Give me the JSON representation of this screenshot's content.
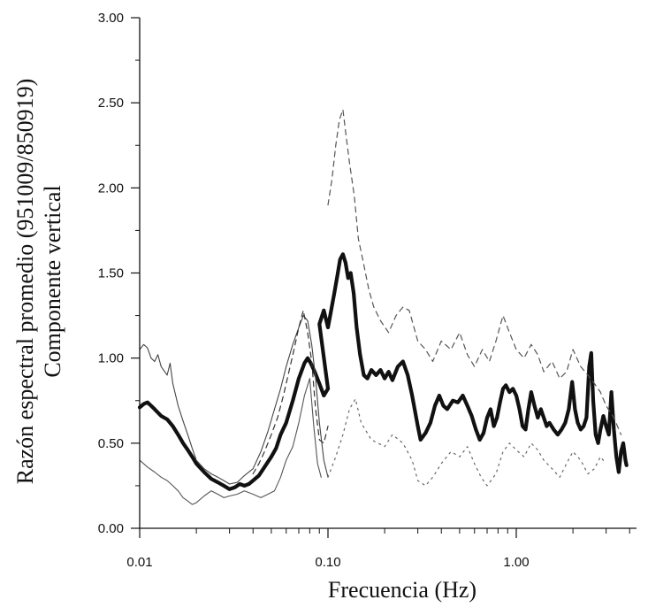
{
  "chart_data": {
    "type": "line",
    "title": "",
    "xlabel": "Frecuencia (Hz)",
    "ylabel_line1": "Razón espectral promedio (951009/850919)",
    "ylabel_line2": "Componente vertical",
    "xscale": "log",
    "xlim": [
      0.01,
      4.0
    ],
    "ylim": [
      0.0,
      3.0
    ],
    "xticks": [
      0.01,
      0.1,
      1.0
    ],
    "xtick_labels": [
      "0.01",
      "0.10",
      "1.00"
    ],
    "yticks": [
      0,
      0.5,
      1.0,
      1.5,
      2.0,
      2.5,
      3.0
    ],
    "ytick_labels": [
      "0.00",
      "0.50",
      "1.00",
      "1.50",
      "2.00",
      "2.50",
      "3.00"
    ],
    "grid": false,
    "series": [
      {
        "style": "thick-solid",
        "color": "#111111",
        "points": [
          [
            0.01,
            0.71
          ],
          [
            0.0105,
            0.73
          ],
          [
            0.011,
            0.74
          ],
          [
            0.0115,
            0.72
          ],
          [
            0.012,
            0.7
          ],
          [
            0.013,
            0.66
          ],
          [
            0.014,
            0.64
          ],
          [
            0.015,
            0.6
          ],
          [
            0.016,
            0.55
          ],
          [
            0.017,
            0.5
          ],
          [
            0.018,
            0.46
          ],
          [
            0.019,
            0.42
          ],
          [
            0.02,
            0.38
          ],
          [
            0.022,
            0.33
          ],
          [
            0.024,
            0.29
          ],
          [
            0.026,
            0.27
          ],
          [
            0.028,
            0.25
          ],
          [
            0.03,
            0.23
          ],
          [
            0.032,
            0.24
          ],
          [
            0.034,
            0.26
          ],
          [
            0.036,
            0.25
          ],
          [
            0.038,
            0.26
          ],
          [
            0.04,
            0.28
          ],
          [
            0.043,
            0.31
          ],
          [
            0.046,
            0.36
          ],
          [
            0.05,
            0.42
          ],
          [
            0.053,
            0.47
          ],
          [
            0.056,
            0.55
          ],
          [
            0.06,
            0.62
          ],
          [
            0.065,
            0.75
          ],
          [
            0.07,
            0.88
          ],
          [
            0.075,
            0.97
          ],
          [
            0.078,
            1.0
          ],
          [
            0.081,
            0.97
          ],
          [
            0.085,
            0.92
          ],
          [
            0.09,
            0.85
          ],
          [
            0.095,
            0.78
          ],
          [
            0.1,
            0.82
          ],
          [
            0.09,
            1.2
          ],
          [
            0.095,
            1.28
          ],
          [
            0.1,
            1.18
          ],
          [
            0.104,
            1.28
          ],
          [
            0.108,
            1.38
          ],
          [
            0.112,
            1.48
          ],
          [
            0.116,
            1.58
          ],
          [
            0.12,
            1.61
          ],
          [
            0.124,
            1.56
          ],
          [
            0.128,
            1.47
          ],
          [
            0.132,
            1.5
          ],
          [
            0.137,
            1.38
          ],
          [
            0.142,
            1.18
          ],
          [
            0.148,
            1.02
          ],
          [
            0.155,
            0.9
          ],
          [
            0.162,
            0.88
          ],
          [
            0.17,
            0.93
          ],
          [
            0.18,
            0.9
          ],
          [
            0.19,
            0.93
          ],
          [
            0.2,
            0.88
          ],
          [
            0.21,
            0.92
          ],
          [
            0.22,
            0.87
          ],
          [
            0.235,
            0.95
          ],
          [
            0.25,
            0.98
          ],
          [
            0.265,
            0.9
          ],
          [
            0.28,
            0.78
          ],
          [
            0.3,
            0.6
          ],
          [
            0.31,
            0.52
          ],
          [
            0.33,
            0.56
          ],
          [
            0.35,
            0.62
          ],
          [
            0.37,
            0.72
          ],
          [
            0.39,
            0.78
          ],
          [
            0.41,
            0.72
          ],
          [
            0.43,
            0.7
          ],
          [
            0.46,
            0.75
          ],
          [
            0.49,
            0.74
          ],
          [
            0.52,
            0.78
          ],
          [
            0.55,
            0.72
          ],
          [
            0.58,
            0.66
          ],
          [
            0.61,
            0.58
          ],
          [
            0.64,
            0.52
          ],
          [
            0.67,
            0.56
          ],
          [
            0.7,
            0.65
          ],
          [
            0.73,
            0.7
          ],
          [
            0.76,
            0.6
          ],
          [
            0.79,
            0.65
          ],
          [
            0.82,
            0.74
          ],
          [
            0.85,
            0.82
          ],
          [
            0.88,
            0.84
          ],
          [
            0.92,
            0.8
          ],
          [
            0.96,
            0.82
          ],
          [
            1.0,
            0.78
          ],
          [
            1.04,
            0.7
          ],
          [
            1.08,
            0.6
          ],
          [
            1.12,
            0.58
          ],
          [
            1.16,
            0.7
          ],
          [
            1.2,
            0.8
          ],
          [
            1.25,
            0.72
          ],
          [
            1.3,
            0.65
          ],
          [
            1.35,
            0.7
          ],
          [
            1.4,
            0.65
          ],
          [
            1.45,
            0.6
          ],
          [
            1.5,
            0.62
          ],
          [
            1.58,
            0.58
          ],
          [
            1.66,
            0.55
          ],
          [
            1.74,
            0.58
          ],
          [
            1.82,
            0.62
          ],
          [
            1.9,
            0.7
          ],
          [
            1.98,
            0.86
          ],
          [
            2.05,
            0.7
          ],
          [
            2.12,
            0.62
          ],
          [
            2.2,
            0.58
          ],
          [
            2.28,
            0.6
          ],
          [
            2.36,
            0.65
          ],
          [
            2.44,
            0.95
          ],
          [
            2.5,
            1.03
          ],
          [
            2.56,
            0.75
          ],
          [
            2.64,
            0.55
          ],
          [
            2.72,
            0.5
          ],
          [
            2.8,
            0.58
          ],
          [
            2.9,
            0.66
          ],
          [
            3.0,
            0.6
          ],
          [
            3.1,
            0.55
          ],
          [
            3.2,
            0.8
          ],
          [
            3.3,
            0.58
          ],
          [
            3.4,
            0.42
          ],
          [
            3.5,
            0.33
          ],
          [
            3.6,
            0.45
          ],
          [
            3.7,
            0.5
          ],
          [
            3.8,
            0.4
          ],
          [
            3.85,
            0.37
          ]
        ]
      },
      {
        "style": "thin-solid",
        "color": "#444444",
        "points": [
          [
            0.01,
            1.05
          ],
          [
            0.0105,
            1.08
          ],
          [
            0.011,
            1.06
          ],
          [
            0.0115,
            1.0
          ],
          [
            0.012,
            0.98
          ],
          [
            0.0125,
            1.02
          ],
          [
            0.013,
            0.95
          ],
          [
            0.014,
            0.9
          ],
          [
            0.0145,
            0.97
          ],
          [
            0.015,
            0.85
          ],
          [
            0.016,
            0.72
          ],
          [
            0.017,
            0.63
          ],
          [
            0.018,
            0.55
          ],
          [
            0.019,
            0.47
          ],
          [
            0.02,
            0.4
          ],
          [
            0.022,
            0.35
          ],
          [
            0.024,
            0.32
          ],
          [
            0.026,
            0.3
          ],
          [
            0.028,
            0.28
          ],
          [
            0.03,
            0.26
          ],
          [
            0.033,
            0.27
          ],
          [
            0.036,
            0.31
          ],
          [
            0.04,
            0.35
          ],
          [
            0.044,
            0.45
          ],
          [
            0.048,
            0.57
          ],
          [
            0.052,
            0.7
          ],
          [
            0.056,
            0.82
          ],
          [
            0.06,
            0.95
          ],
          [
            0.065,
            1.08
          ],
          [
            0.07,
            1.18
          ],
          [
            0.074,
            1.25
          ],
          [
            0.078,
            1.22
          ],
          [
            0.082,
            1.08
          ],
          [
            0.086,
            0.88
          ],
          [
            0.09,
            0.62
          ],
          [
            0.095,
            0.4
          ],
          [
            0.1,
            0.3
          ]
        ]
      },
      {
        "style": "thin-solid",
        "color": "#555555",
        "points": [
          [
            0.01,
            0.4
          ],
          [
            0.011,
            0.36
          ],
          [
            0.012,
            0.33
          ],
          [
            0.013,
            0.3
          ],
          [
            0.014,
            0.28
          ],
          [
            0.015,
            0.25
          ],
          [
            0.016,
            0.22
          ],
          [
            0.017,
            0.18
          ],
          [
            0.018,
            0.16
          ],
          [
            0.019,
            0.14
          ],
          [
            0.02,
            0.15
          ],
          [
            0.022,
            0.19
          ],
          [
            0.024,
            0.22
          ],
          [
            0.026,
            0.2
          ],
          [
            0.028,
            0.18
          ],
          [
            0.03,
            0.19
          ],
          [
            0.033,
            0.2
          ],
          [
            0.036,
            0.22
          ],
          [
            0.04,
            0.2
          ],
          [
            0.044,
            0.18
          ],
          [
            0.048,
            0.2
          ],
          [
            0.052,
            0.22
          ],
          [
            0.056,
            0.3
          ],
          [
            0.06,
            0.4
          ],
          [
            0.065,
            0.48
          ],
          [
            0.07,
            0.62
          ],
          [
            0.075,
            0.78
          ],
          [
            0.08,
            0.88
          ],
          [
            0.084,
            0.6
          ],
          [
            0.088,
            0.38
          ],
          [
            0.092,
            0.3
          ]
        ]
      },
      {
        "style": "dashed",
        "color": "#333333",
        "points": [
          [
            0.04,
            0.32
          ],
          [
            0.043,
            0.38
          ],
          [
            0.046,
            0.45
          ],
          [
            0.05,
            0.55
          ],
          [
            0.054,
            0.65
          ],
          [
            0.058,
            0.78
          ],
          [
            0.062,
            0.92
          ],
          [
            0.066,
            1.05
          ],
          [
            0.07,
            1.18
          ],
          [
            0.074,
            1.28
          ],
          [
            0.078,
            1.15
          ],
          [
            0.082,
            0.98
          ],
          [
            0.086,
            0.7
          ],
          [
            0.09,
            0.52
          ],
          [
            0.095,
            0.5
          ],
          [
            0.1,
            0.6
          ]
        ]
      },
      {
        "style": "dashed",
        "color": "#555555",
        "points": [
          [
            0.1,
            1.9
          ],
          [
            0.105,
            2.05
          ],
          [
            0.11,
            2.25
          ],
          [
            0.115,
            2.4
          ],
          [
            0.12,
            2.46
          ],
          [
            0.125,
            2.3
          ],
          [
            0.13,
            2.15
          ],
          [
            0.138,
            1.95
          ],
          [
            0.145,
            1.7
          ],
          [
            0.155,
            1.55
          ],
          [
            0.165,
            1.4
          ],
          [
            0.175,
            1.3
          ],
          [
            0.19,
            1.22
          ],
          [
            0.21,
            1.15
          ],
          [
            0.23,
            1.25
          ],
          [
            0.25,
            1.3
          ],
          [
            0.27,
            1.28
          ],
          [
            0.3,
            1.1
          ],
          [
            0.33,
            1.05
          ],
          [
            0.36,
            0.98
          ],
          [
            0.4,
            1.1
          ],
          [
            0.45,
            1.05
          ],
          [
            0.5,
            1.15
          ],
          [
            0.55,
            1.02
          ],
          [
            0.6,
            0.95
          ],
          [
            0.66,
            1.05
          ],
          [
            0.72,
            0.98
          ],
          [
            0.78,
            1.1
          ],
          [
            0.85,
            1.25
          ],
          [
            0.92,
            1.15
          ],
          [
            1.0,
            1.05
          ],
          [
            1.1,
            1.0
          ],
          [
            1.2,
            1.08
          ],
          [
            1.3,
            1.02
          ],
          [
            1.4,
            0.92
          ],
          [
            1.55,
            0.98
          ],
          [
            1.7,
            0.88
          ],
          [
            1.85,
            0.92
          ],
          [
            2.0,
            1.05
          ],
          [
            2.2,
            0.95
          ],
          [
            2.4,
            0.9
          ],
          [
            2.6,
            0.85
          ],
          [
            2.8,
            0.8
          ],
          [
            3.0,
            0.72
          ],
          [
            3.3,
            0.65
          ],
          [
            3.6,
            0.55
          ]
        ]
      },
      {
        "style": "dotted",
        "color": "#666666",
        "points": [
          [
            0.1,
            0.3
          ],
          [
            0.11,
            0.42
          ],
          [
            0.12,
            0.55
          ],
          [
            0.13,
            0.7
          ],
          [
            0.14,
            0.76
          ],
          [
            0.15,
            0.62
          ],
          [
            0.17,
            0.52
          ],
          [
            0.2,
            0.48
          ],
          [
            0.22,
            0.55
          ],
          [
            0.25,
            0.5
          ],
          [
            0.28,
            0.4
          ],
          [
            0.3,
            0.28
          ],
          [
            0.33,
            0.25
          ],
          [
            0.36,
            0.3
          ],
          [
            0.4,
            0.38
          ],
          [
            0.45,
            0.45
          ],
          [
            0.5,
            0.42
          ],
          [
            0.55,
            0.48
          ],
          [
            0.6,
            0.38
          ],
          [
            0.65,
            0.3
          ],
          [
            0.7,
            0.25
          ],
          [
            0.78,
            0.32
          ],
          [
            0.85,
            0.45
          ],
          [
            0.92,
            0.5
          ],
          [
            1.0,
            0.46
          ],
          [
            1.1,
            0.42
          ],
          [
            1.2,
            0.5
          ],
          [
            1.3,
            0.46
          ],
          [
            1.4,
            0.4
          ],
          [
            1.55,
            0.35
          ],
          [
            1.7,
            0.3
          ],
          [
            1.85,
            0.38
          ],
          [
            2.0,
            0.45
          ],
          [
            2.2,
            0.4
          ],
          [
            2.4,
            0.32
          ],
          [
            2.6,
            0.35
          ],
          [
            2.8,
            0.42
          ],
          [
            3.0,
            0.38
          ]
        ]
      }
    ]
  }
}
